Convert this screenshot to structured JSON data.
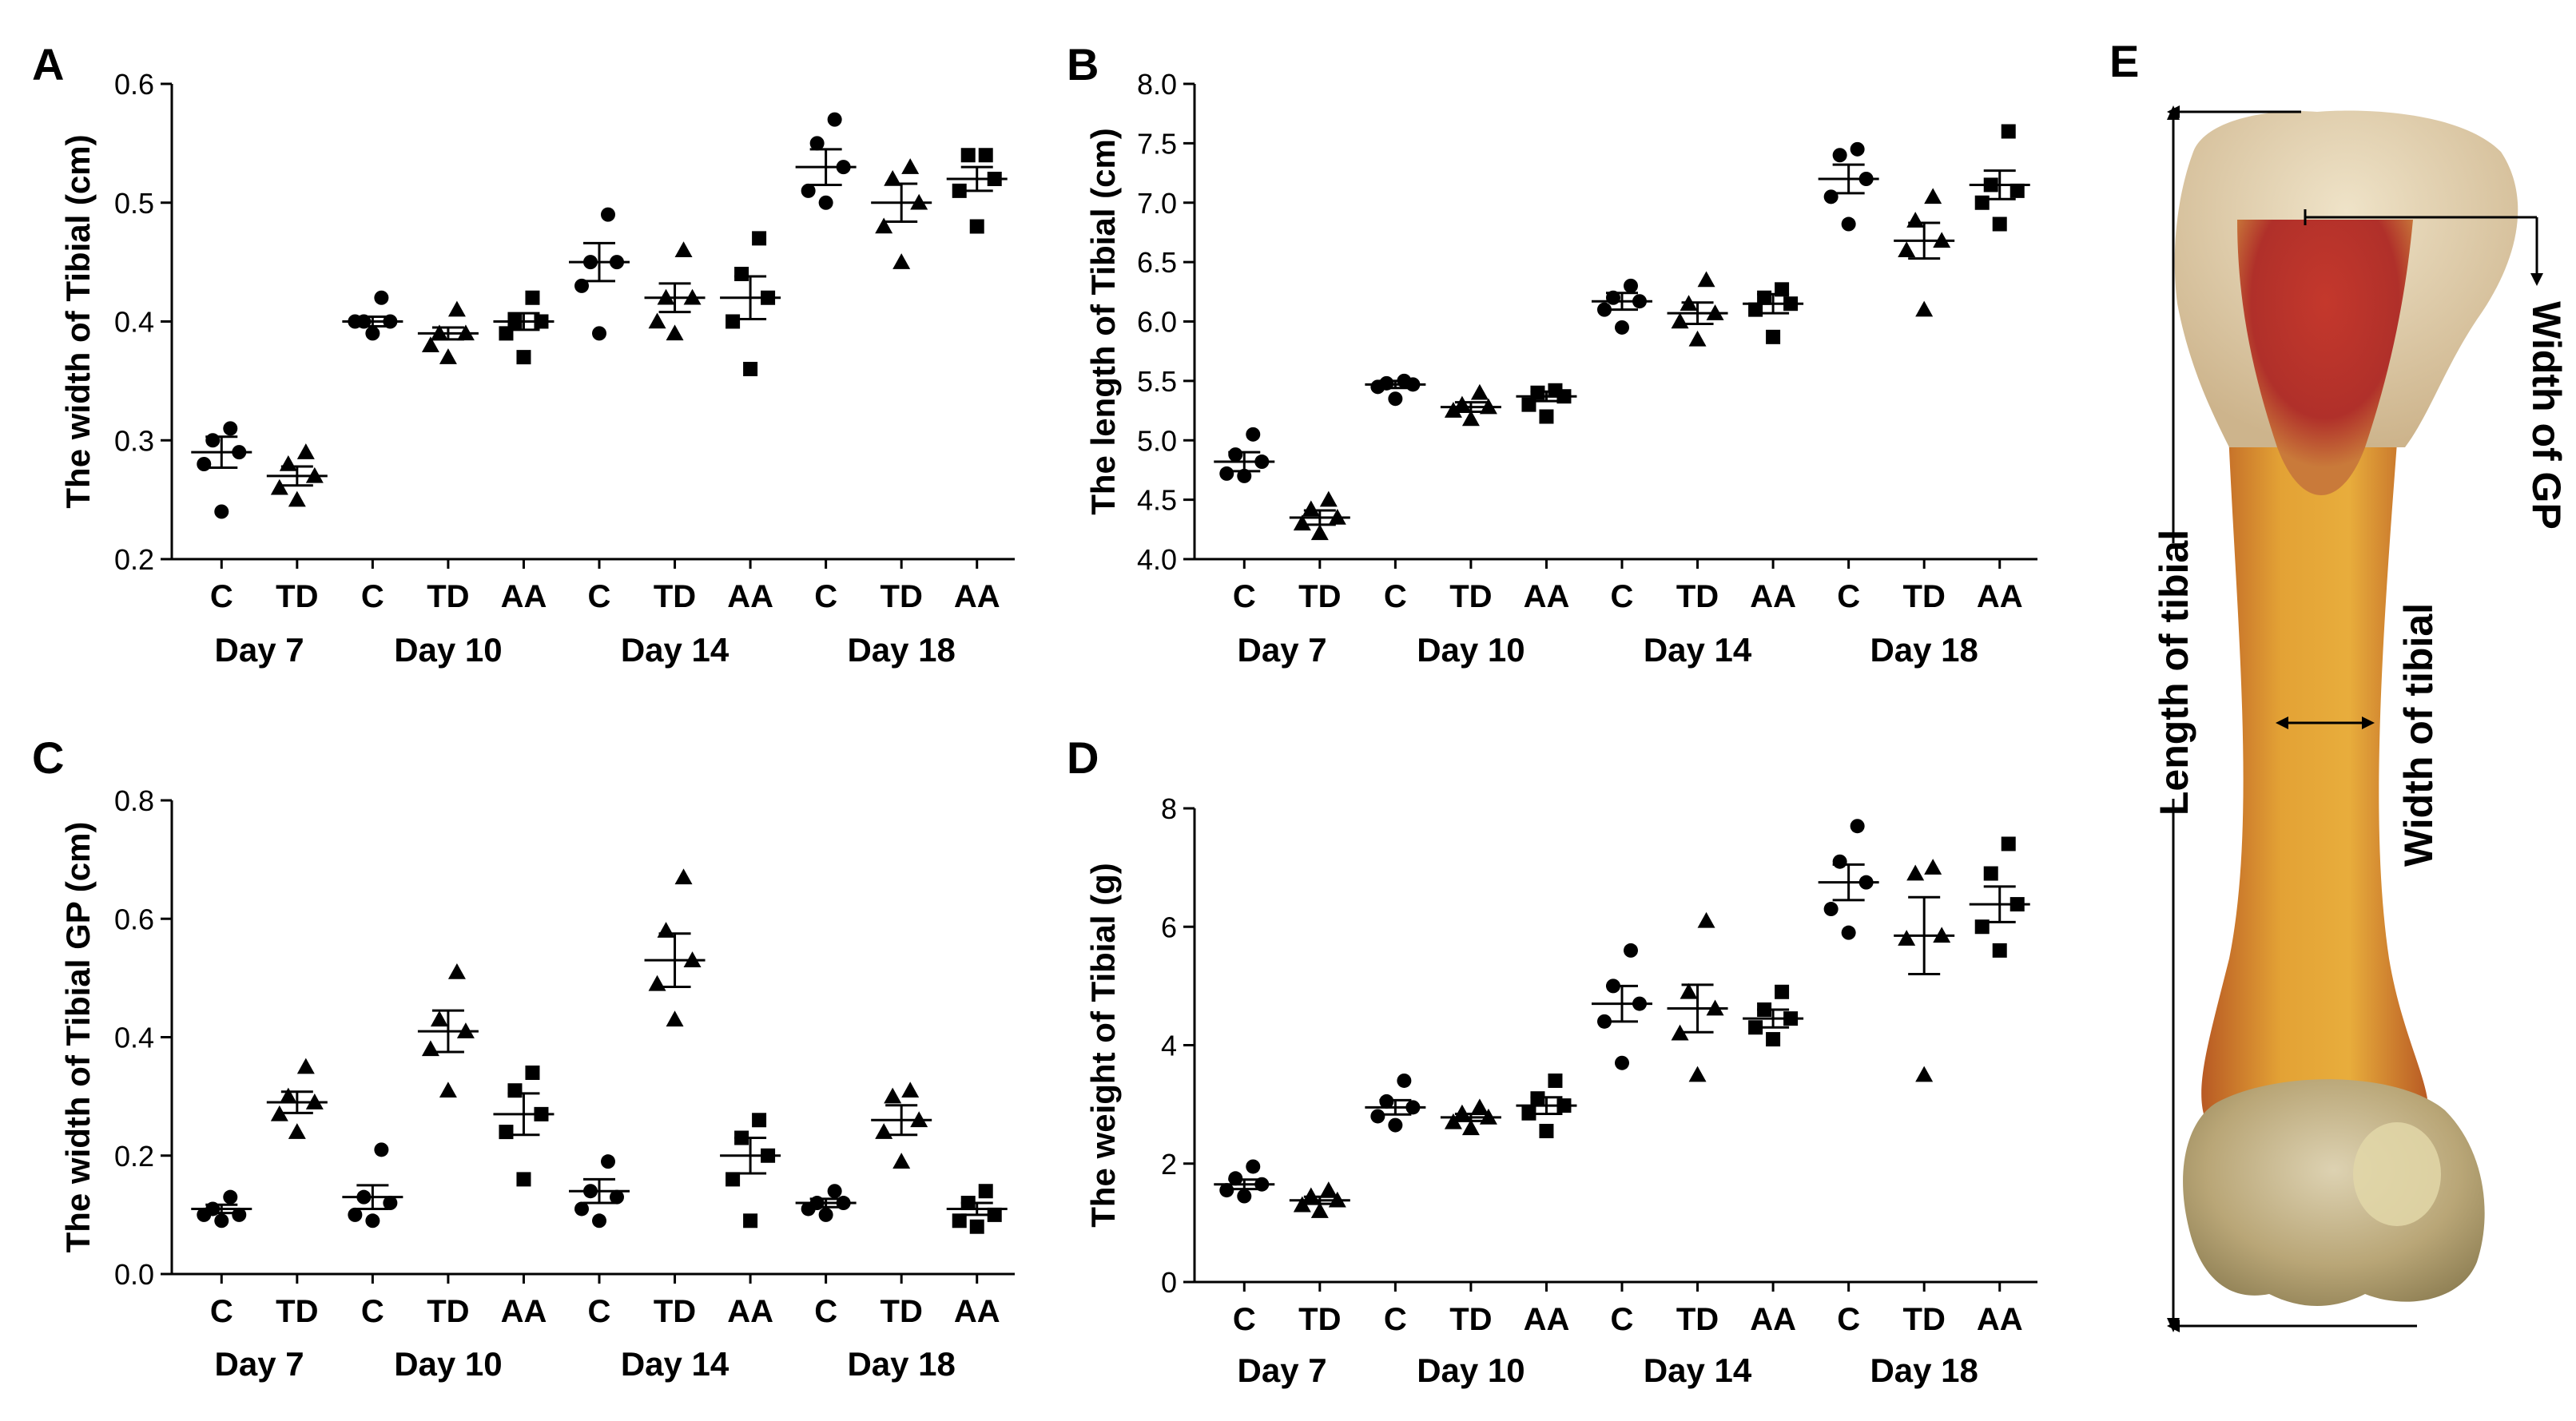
{
  "chart_data": [
    {
      "panel": "A",
      "type": "scatter",
      "ylabel": "The width of Tibial (cm)",
      "ylim": [
        0.2,
        0.6
      ],
      "yticks": [
        "0.2",
        "0.3",
        "0.4",
        "0.5",
        "0.6"
      ],
      "groups": [
        {
          "day": "Day 7",
          "treatments": [
            {
              "label": "C",
              "marker": "circle",
              "mean": 0.29,
              "sem": 0.013,
              "points": [
                0.24,
                0.28,
                0.29,
                0.3,
                0.31
              ]
            },
            {
              "label": "TD",
              "marker": "triangle",
              "mean": 0.27,
              "sem": 0.008,
              "points": [
                0.25,
                0.26,
                0.27,
                0.28,
                0.29
              ]
            }
          ]
        },
        {
          "day": "Day 10",
          "treatments": [
            {
              "label": "C",
              "marker": "circle",
              "mean": 0.4,
              "sem": 0.004,
              "points": [
                0.39,
                0.4,
                0.4,
                0.4,
                0.42
              ]
            },
            {
              "label": "TD",
              "marker": "triangle",
              "mean": 0.39,
              "sem": 0.005,
              "points": [
                0.37,
                0.38,
                0.39,
                0.39,
                0.41
              ]
            },
            {
              "label": "AA",
              "marker": "square",
              "mean": 0.4,
              "sem": 0.007,
              "points": [
                0.37,
                0.39,
                0.4,
                0.4,
                0.42
              ]
            }
          ]
        },
        {
          "day": "Day 14",
          "treatments": [
            {
              "label": "C",
              "marker": "circle",
              "mean": 0.45,
              "sem": 0.016,
              "points": [
                0.39,
                0.43,
                0.45,
                0.45,
                0.49
              ]
            },
            {
              "label": "TD",
              "marker": "triangle",
              "mean": 0.42,
              "sem": 0.012,
              "points": [
                0.39,
                0.4,
                0.42,
                0.42,
                0.46
              ]
            },
            {
              "label": "AA",
              "marker": "square",
              "mean": 0.42,
              "sem": 0.018,
              "points": [
                0.36,
                0.4,
                0.42,
                0.44,
                0.47
              ]
            }
          ]
        },
        {
          "day": "Day 18",
          "treatments": [
            {
              "label": "C",
              "marker": "circle",
              "mean": 0.53,
              "sem": 0.015,
              "points": [
                0.5,
                0.51,
                0.53,
                0.55,
                0.57
              ]
            },
            {
              "label": "TD",
              "marker": "triangle",
              "mean": 0.5,
              "sem": 0.016,
              "points": [
                0.45,
                0.48,
                0.5,
                0.52,
                0.53
              ]
            },
            {
              "label": "AA",
              "marker": "square",
              "mean": 0.52,
              "sem": 0.01,
              "points": [
                0.48,
                0.51,
                0.52,
                0.54,
                0.54
              ]
            }
          ]
        }
      ]
    },
    {
      "panel": "B",
      "type": "scatter",
      "ylabel": "The length of Tibial (cm)",
      "ylim": [
        4.0,
        8.0
      ],
      "yticks": [
        "4.0",
        "4.5",
        "5.0",
        "5.5",
        "6.0",
        "6.5",
        "7.0",
        "7.5",
        "8.0"
      ],
      "groups": [
        {
          "day": "Day 7",
          "treatments": [
            {
              "label": "C",
              "marker": "circle",
              "mean": 4.82,
              "sem": 0.08,
              "points": [
                4.7,
                4.72,
                4.82,
                4.88,
                5.05
              ]
            },
            {
              "label": "TD",
              "marker": "triangle",
              "mean": 4.35,
              "sem": 0.06,
              "points": [
                4.22,
                4.3,
                4.35,
                4.42,
                4.5
              ]
            }
          ]
        },
        {
          "day": "Day 10",
          "treatments": [
            {
              "label": "C",
              "marker": "circle",
              "mean": 5.47,
              "sem": 0.03,
              "points": [
                5.35,
                5.45,
                5.47,
                5.48,
                5.5
              ]
            },
            {
              "label": "TD",
              "marker": "triangle",
              "mean": 5.28,
              "sem": 0.04,
              "points": [
                5.18,
                5.25,
                5.28,
                5.3,
                5.4
              ]
            },
            {
              "label": "AA",
              "marker": "square",
              "mean": 5.37,
              "sem": 0.04,
              "points": [
                5.2,
                5.3,
                5.37,
                5.4,
                5.42
              ]
            }
          ]
        },
        {
          "day": "Day 14",
          "treatments": [
            {
              "label": "C",
              "marker": "circle",
              "mean": 6.17,
              "sem": 0.07,
              "points": [
                5.95,
                6.1,
                6.17,
                6.2,
                6.3
              ]
            },
            {
              "label": "TD",
              "marker": "triangle",
              "mean": 6.07,
              "sem": 0.09,
              "points": [
                5.85,
                6.0,
                6.07,
                6.15,
                6.35
              ]
            },
            {
              "label": "AA",
              "marker": "square",
              "mean": 6.15,
              "sem": 0.08,
              "points": [
                5.87,
                6.1,
                6.15,
                6.2,
                6.27
              ]
            }
          ]
        },
        {
          "day": "Day 18",
          "treatments": [
            {
              "label": "C",
              "marker": "circle",
              "mean": 7.2,
              "sem": 0.12,
              "points": [
                6.82,
                7.05,
                7.2,
                7.4,
                7.45
              ]
            },
            {
              "label": "TD",
              "marker": "triangle",
              "mean": 6.68,
              "sem": 0.15,
              "points": [
                6.1,
                6.6,
                6.68,
                6.85,
                7.05
              ]
            },
            {
              "label": "AA",
              "marker": "square",
              "mean": 7.15,
              "sem": 0.12,
              "points": [
                6.82,
                7.0,
                7.1,
                7.15,
                7.6
              ]
            }
          ]
        }
      ]
    },
    {
      "panel": "C",
      "type": "scatter",
      "ylabel": "The width of Tibial GP (cm)",
      "ylim": [
        0.0,
        0.8
      ],
      "yticks": [
        "0.0",
        "0.2",
        "0.4",
        "0.6",
        "0.8"
      ],
      "groups": [
        {
          "day": "Day 7",
          "treatments": [
            {
              "label": "C",
              "marker": "circle",
              "mean": 0.11,
              "sem": 0.007,
              "points": [
                0.09,
                0.1,
                0.1,
                0.11,
                0.13
              ]
            },
            {
              "label": "TD",
              "marker": "triangle",
              "mean": 0.29,
              "sem": 0.018,
              "points": [
                0.24,
                0.27,
                0.29,
                0.3,
                0.35
              ]
            }
          ]
        },
        {
          "day": "Day 10",
          "treatments": [
            {
              "label": "C",
              "marker": "circle",
              "mean": 0.13,
              "sem": 0.02,
              "points": [
                0.09,
                0.1,
                0.12,
                0.13,
                0.21
              ]
            },
            {
              "label": "TD",
              "marker": "triangle",
              "mean": 0.41,
              "sem": 0.035,
              "points": [
                0.31,
                0.38,
                0.41,
                0.43,
                0.51
              ]
            },
            {
              "label": "AA",
              "marker": "square",
              "mean": 0.27,
              "sem": 0.035,
              "points": [
                0.16,
                0.24,
                0.27,
                0.31,
                0.34
              ]
            }
          ]
        },
        {
          "day": "Day 14",
          "treatments": [
            {
              "label": "C",
              "marker": "circle",
              "mean": 0.14,
              "sem": 0.02,
              "points": [
                0.09,
                0.11,
                0.13,
                0.14,
                0.19
              ]
            },
            {
              "label": "TD",
              "marker": "triangle",
              "mean": 0.53,
              "sem": 0.045,
              "points": [
                0.43,
                0.49,
                0.53,
                0.58,
                0.67
              ]
            },
            {
              "label": "AA",
              "marker": "square",
              "mean": 0.2,
              "sem": 0.03,
              "points": [
                0.09,
                0.16,
                0.2,
                0.23,
                0.26
              ]
            }
          ]
        },
        {
          "day": "Day 18",
          "treatments": [
            {
              "label": "C",
              "marker": "circle",
              "mean": 0.12,
              "sem": 0.007,
              "points": [
                0.1,
                0.11,
                0.12,
                0.12,
                0.14
              ]
            },
            {
              "label": "TD",
              "marker": "triangle",
              "mean": 0.26,
              "sem": 0.025,
              "points": [
                0.19,
                0.24,
                0.26,
                0.3,
                0.31
              ]
            },
            {
              "label": "AA",
              "marker": "square",
              "mean": 0.11,
              "sem": 0.01,
              "points": [
                0.08,
                0.09,
                0.1,
                0.12,
                0.14
              ]
            }
          ]
        }
      ]
    },
    {
      "panel": "D",
      "type": "scatter",
      "ylabel": "The weight of Tibial (g)",
      "ylim": [
        0,
        8
      ],
      "yticks": [
        "0",
        "2",
        "4",
        "6",
        "8"
      ],
      "groups": [
        {
          "day": "Day 7",
          "treatments": [
            {
              "label": "C",
              "marker": "circle",
              "mean": 1.65,
              "sem": 0.08,
              "points": [
                1.45,
                1.55,
                1.65,
                1.75,
                1.95
              ]
            },
            {
              "label": "TD",
              "marker": "triangle",
              "mean": 1.38,
              "sem": 0.06,
              "points": [
                1.2,
                1.3,
                1.38,
                1.45,
                1.55
              ]
            }
          ]
        },
        {
          "day": "Day 10",
          "treatments": [
            {
              "label": "C",
              "marker": "circle",
              "mean": 2.95,
              "sem": 0.12,
              "points": [
                2.65,
                2.8,
                2.95,
                3.05,
                3.4
              ]
            },
            {
              "label": "TD",
              "marker": "triangle",
              "mean": 2.78,
              "sem": 0.06,
              "points": [
                2.6,
                2.7,
                2.78,
                2.85,
                2.95
              ]
            },
            {
              "label": "AA",
              "marker": "square",
              "mean": 2.98,
              "sem": 0.14,
              "points": [
                2.55,
                2.85,
                2.98,
                3.1,
                3.4
              ]
            }
          ]
        },
        {
          "day": "Day 14",
          "treatments": [
            {
              "label": "C",
              "marker": "circle",
              "mean": 4.7,
              "sem": 0.3,
              "points": [
                3.7,
                4.4,
                4.7,
                5.0,
                5.6
              ]
            },
            {
              "label": "TD",
              "marker": "triangle",
              "mean": 4.62,
              "sem": 0.4,
              "points": [
                3.5,
                4.2,
                4.62,
                4.9,
                6.1
              ]
            },
            {
              "label": "AA",
              "marker": "square",
              "mean": 4.45,
              "sem": 0.15,
              "points": [
                4.1,
                4.3,
                4.45,
                4.6,
                4.9
              ]
            }
          ]
        },
        {
          "day": "Day 18",
          "treatments": [
            {
              "label": "C",
              "marker": "circle",
              "mean": 6.75,
              "sem": 0.3,
              "points": [
                5.9,
                6.3,
                6.75,
                7.1,
                7.7
              ]
            },
            {
              "label": "TD",
              "marker": "triangle",
              "mean": 5.85,
              "sem": 0.65,
              "points": [
                3.5,
                5.8,
                5.85,
                6.9,
                7.0
              ]
            },
            {
              "label": "AA",
              "marker": "square",
              "mean": 6.38,
              "sem": 0.3,
              "points": [
                5.6,
                6.0,
                6.38,
                6.9,
                7.4
              ]
            }
          ]
        }
      ]
    }
  ],
  "panel_e": {
    "label": "E",
    "length_label": "Length of tibial",
    "width_label": "Width of tibial",
    "gp_label": "Width of GP",
    "bone_colors": {
      "cartilage": "#d9c4a0",
      "marrow": "#b8322a",
      "shaft": "#e0a030",
      "shaft_dark": "#c46a28",
      "condyle": "#c8b890"
    }
  }
}
